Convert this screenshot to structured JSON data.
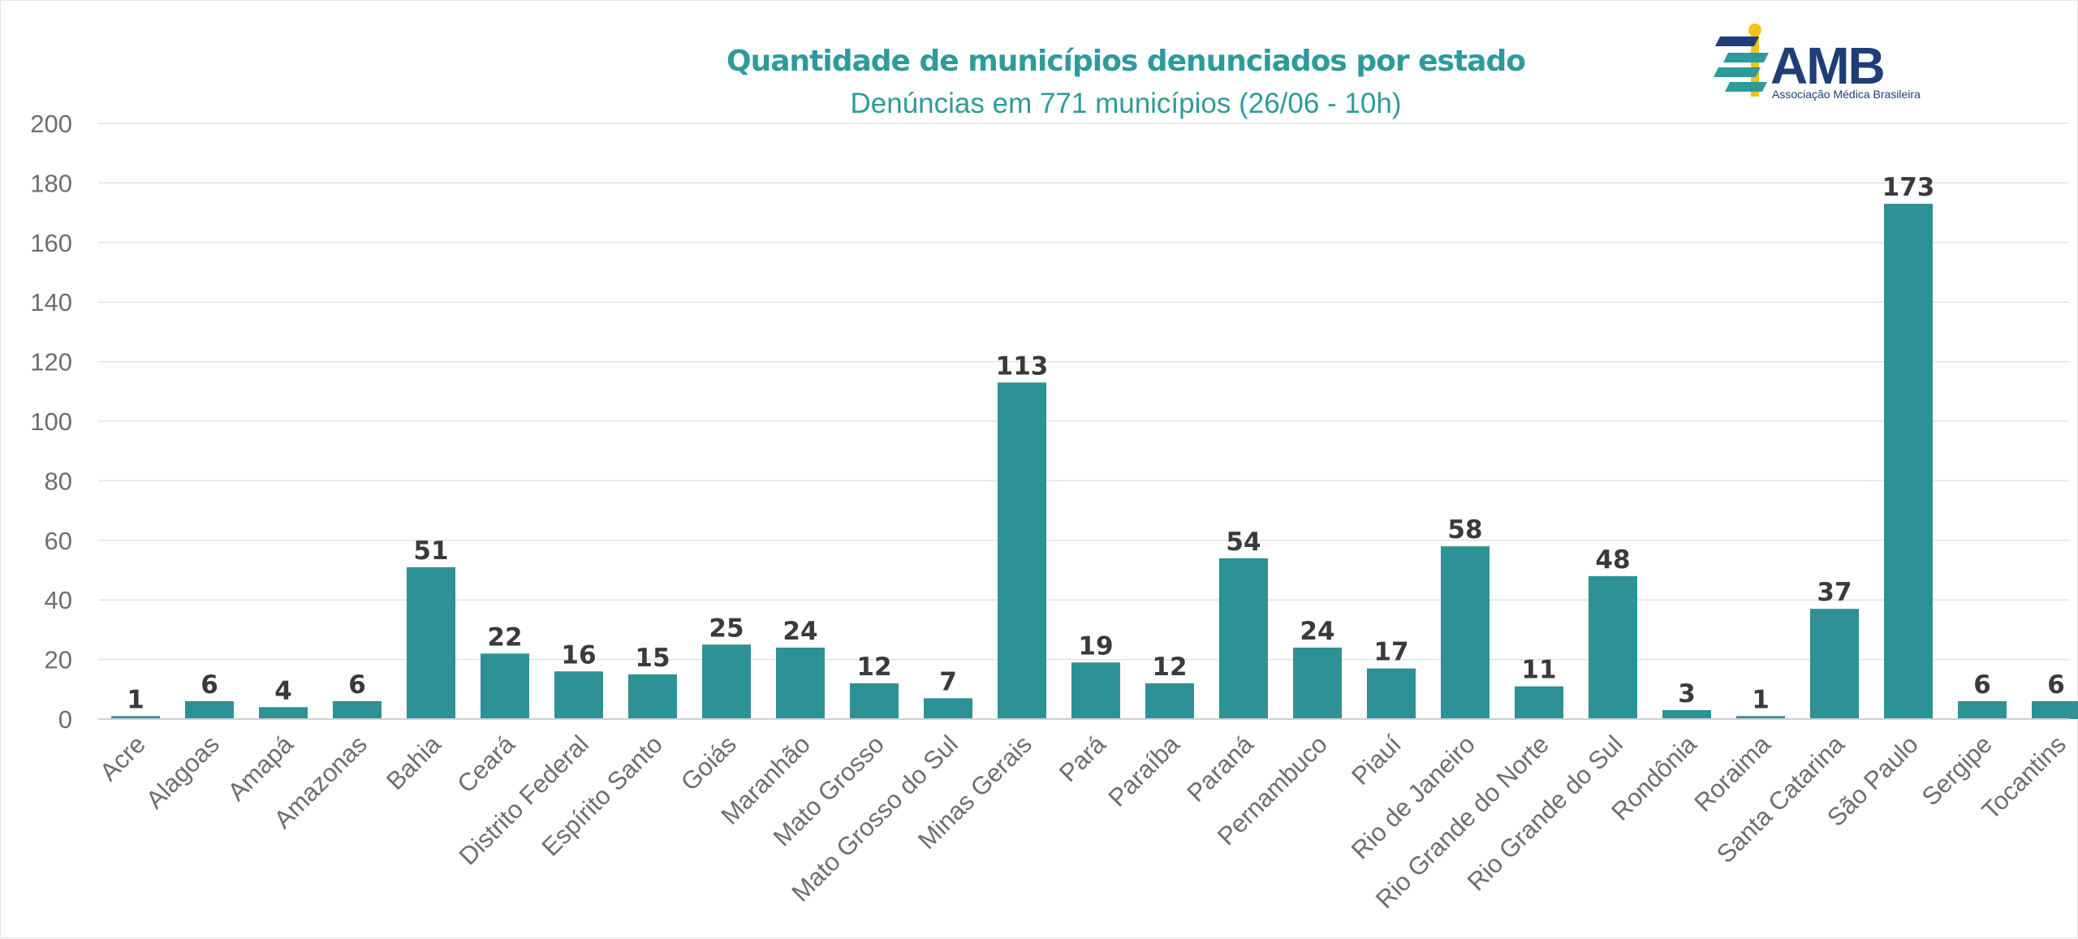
{
  "logo": {
    "name": "AMB",
    "tagline": "Associação Médica Brasileira",
    "colors": {
      "navy": "#1f3e78",
      "teal": "#2e9a9b",
      "yellow": "#f2c418"
    }
  },
  "chart_data": {
    "type": "bar",
    "title": "Quantidade de municípios denunciados por estado",
    "subtitle": "Denúncias em 771 municípios (26/06 - 10h)",
    "xlabel": "",
    "ylabel": "",
    "ylim": [
      0,
      200
    ],
    "yticks": [
      0,
      20,
      40,
      60,
      80,
      100,
      120,
      140,
      160,
      180,
      200
    ],
    "grid": true,
    "legend": "none",
    "bar_color": "#2e9196",
    "categories": [
      "Acre",
      "Alagoas",
      "Amapá",
      "Amazonas",
      "Bahia",
      "Ceará",
      "Distrito Federal",
      "Espírito Santo",
      "Goiás",
      "Maranhão",
      "Mato Grosso",
      "Mato Grosso do Sul",
      "Minas Gerais",
      "Pará",
      "Paraíba",
      "Paraná",
      "Pernambuco",
      "Piauí",
      "Rio de Janeiro",
      "Rio Grande do Norte",
      "Rio Grande do Sul",
      "Rondônia",
      "Roraima",
      "Santa Catarina",
      "São Paulo",
      "Sergipe",
      "Tocantins"
    ],
    "values": [
      1,
      6,
      4,
      6,
      51,
      22,
      16,
      15,
      25,
      24,
      12,
      7,
      113,
      19,
      12,
      54,
      24,
      17,
      58,
      11,
      48,
      3,
      1,
      37,
      173,
      6,
      6
    ]
  }
}
